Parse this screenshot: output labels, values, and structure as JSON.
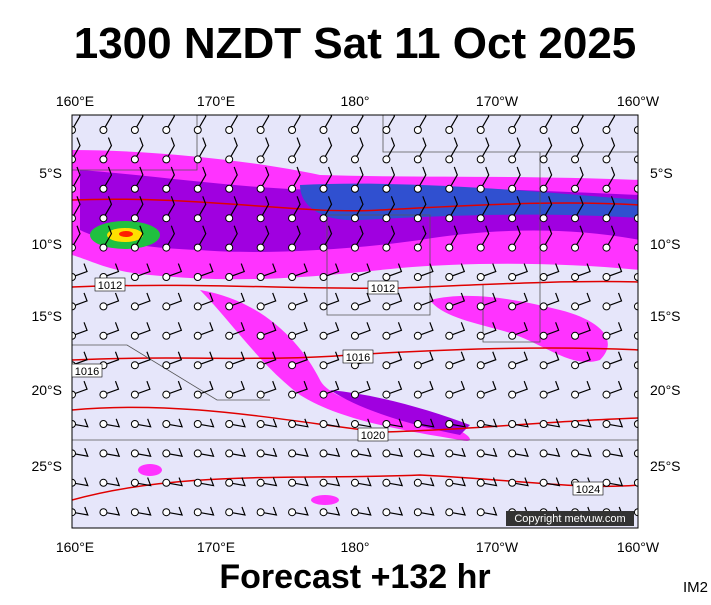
{
  "title": "1300 NZDT Sat 11 Oct 2025",
  "lon_labels": [
    "160°E",
    "170°E",
    "180°",
    "170°W",
    "160°W"
  ],
  "lat_labels": [
    "5°S",
    "10°S",
    "15°S",
    "20°S",
    "25°S"
  ],
  "isobar_labels": [
    "1012",
    "1012",
    "1016",
    "1016",
    "1020",
    "1024"
  ],
  "copyright": "Copyright metvuw.com",
  "footer": "Forecast +132 hr",
  "image_id": "IM2"
}
